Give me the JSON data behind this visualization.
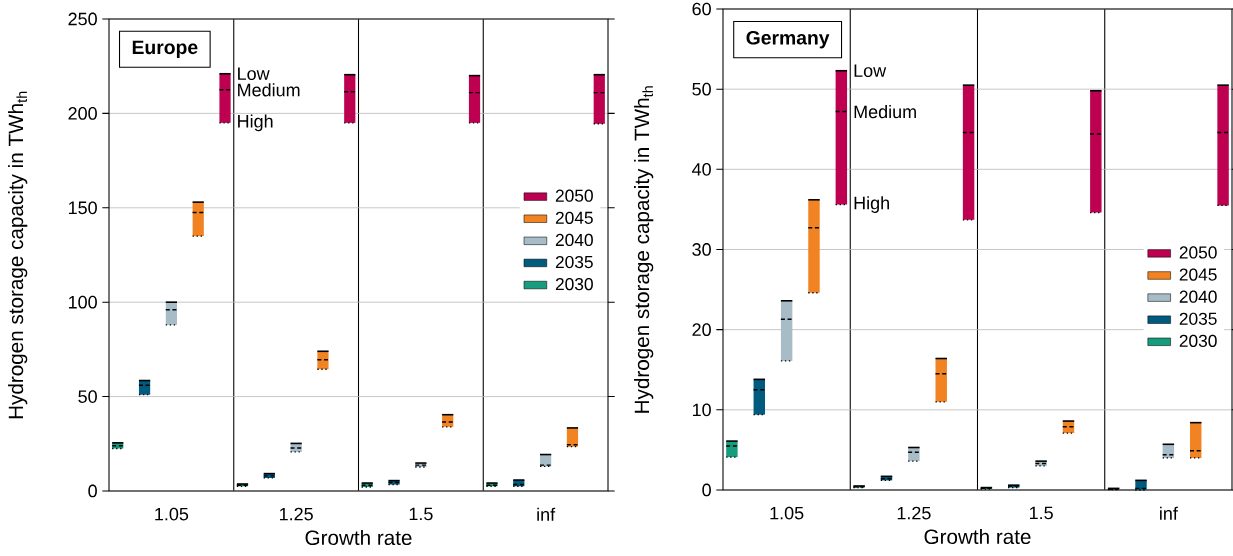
{
  "chart_data": [
    {
      "type": "box",
      "title": "Europe",
      "xlabel": "Growth rate",
      "ylabel": "Hydrogen storage capacity in TWh$_{th}$",
      "categories": [
        "1.05",
        "1.25",
        "1.5",
        "inf"
      ],
      "ylim": [
        0,
        250
      ],
      "yticks": [
        0,
        50,
        100,
        150,
        200,
        250
      ],
      "grid": "y",
      "legend": "right",
      "series": [
        {
          "name": "2030",
          "color": "#179c7d",
          "boxes": [
            {
              "low": 22.5,
              "q1": 22.5,
              "median": 24,
              "q3": 25.5,
              "high": 25.5
            },
            {
              "low": 2.5,
              "q1": 2.5,
              "median": 3,
              "q3": 3.7,
              "high": 3.7
            },
            {
              "low": 2.1,
              "q1": 2.1,
              "median": 3,
              "q3": 4.2,
              "high": 4.2
            },
            {
              "low": 2.5,
              "q1": 2.5,
              "median": 3,
              "q3": 4.2,
              "high": 4.2
            }
          ]
        },
        {
          "name": "2035",
          "color": "#005b7f",
          "boxes": [
            {
              "low": 51,
              "q1": 51,
              "median": 56,
              "q3": 58.5,
              "high": 58.5
            },
            {
              "low": 6.9,
              "q1": 6.9,
              "median": 8,
              "q3": 9.2,
              "high": 9.2
            },
            {
              "low": 3.4,
              "q1": 3.4,
              "median": 4.5,
              "q3": 5.5,
              "high": 5.5
            },
            {
              "low": 2.5,
              "q1": 2.5,
              "median": 3.4,
              "q3": 5.8,
              "high": 5.8
            }
          ]
        },
        {
          "name": "2040",
          "color": "#a8bcc8",
          "boxes": [
            {
              "low": 88,
              "q1": 88,
              "median": 96,
              "q3": 100,
              "high": 100
            },
            {
              "low": 20.7,
              "q1": 20.7,
              "median": 22.8,
              "q3": 25.2,
              "high": 25.2
            },
            {
              "low": 12.7,
              "q1": 12.7,
              "median": 13.7,
              "q3": 14.8,
              "high": 14.8
            },
            {
              "low": 13,
              "q1": 13,
              "median": 13.7,
              "q3": 19.3,
              "high": 19.3
            }
          ]
        },
        {
          "name": "2045",
          "color": "#f28322",
          "boxes": [
            {
              "low": 135,
              "q1": 135,
              "median": 147.5,
              "q3": 153,
              "high": 153
            },
            {
              "low": 64.5,
              "q1": 64.5,
              "median": 69.5,
              "q3": 74,
              "high": 74
            },
            {
              "low": 34,
              "q1": 34,
              "median": 36.5,
              "q3": 40.4,
              "high": 40.4
            },
            {
              "low": 23.5,
              "q1": 23.5,
              "median": 24.5,
              "q3": 33.4,
              "high": 33.4
            }
          ]
        },
        {
          "name": "2050",
          "color": "#be0050",
          "boxes": [
            {
              "low": 195,
              "q1": 195,
              "median": 212.5,
              "q3": 221,
              "high": 221
            },
            {
              "low": 195,
              "q1": 195,
              "median": 211.5,
              "q3": 220.5,
              "high": 220.5
            },
            {
              "low": 195,
              "q1": 195,
              "median": 211,
              "q3": 220,
              "high": 220
            },
            {
              "low": 194.5,
              "q1": 194.5,
              "median": 211,
              "q3": 220.5,
              "high": 220.5
            }
          ]
        }
      ],
      "annotations": [
        "Low",
        "Medium",
        "High"
      ]
    },
    {
      "type": "box",
      "title": "Germany",
      "xlabel": "Growth rate",
      "ylabel": "Hydrogen storage capacity in TWh$_{th}$",
      "categories": [
        "1.05",
        "1.25",
        "1.5",
        "inf"
      ],
      "ylim": [
        0,
        60
      ],
      "yticks": [
        0,
        10,
        20,
        30,
        40,
        50,
        60
      ],
      "grid": "y",
      "legend": "right",
      "series": [
        {
          "name": "2030",
          "color": "#179c7d",
          "boxes": [
            {
              "low": 4.1,
              "q1": 4.1,
              "median": 5.5,
              "q3": 6.1,
              "high": 6.1
            },
            {
              "low": 0.3,
              "q1": 0.3,
              "median": 0.4,
              "q3": 0.5,
              "high": 0.5
            },
            {
              "low": 0.1,
              "q1": 0.1,
              "median": 0.2,
              "q3": 0.3,
              "high": 0.3
            },
            {
              "low": 0.05,
              "q1": 0.05,
              "median": 0.1,
              "q3": 0.2,
              "high": 0.2
            }
          ]
        },
        {
          "name": "2035",
          "color": "#005b7f",
          "boxes": [
            {
              "low": 9.4,
              "q1": 9.4,
              "median": 12.5,
              "q3": 13.8,
              "high": 13.8
            },
            {
              "low": 1.2,
              "q1": 1.2,
              "median": 1.4,
              "q3": 1.7,
              "high": 1.7
            },
            {
              "low": 0.3,
              "q1": 0.3,
              "median": 0.5,
              "q3": 0.6,
              "high": 0.6
            },
            {
              "low": 0,
              "q1": 0,
              "median": 0.2,
              "q3": 1.2,
              "high": 1.2
            }
          ]
        },
        {
          "name": "2040",
          "color": "#a8bcc8",
          "boxes": [
            {
              "low": 16.1,
              "q1": 16.1,
              "median": 21.3,
              "q3": 23.6,
              "high": 23.6
            },
            {
              "low": 3.6,
              "q1": 3.6,
              "median": 4.7,
              "q3": 5.3,
              "high": 5.3
            },
            {
              "low": 3,
              "q1": 3,
              "median": 3.3,
              "q3": 3.6,
              "high": 3.6
            },
            {
              "low": 4,
              "q1": 4,
              "median": 4.4,
              "q3": 5.7,
              "high": 5.7
            }
          ]
        },
        {
          "name": "2045",
          "color": "#f28322",
          "boxes": [
            {
              "low": 24.6,
              "q1": 24.6,
              "median": 32.7,
              "q3": 36.2,
              "high": 36.2
            },
            {
              "low": 11,
              "q1": 11,
              "median": 14.5,
              "q3": 16.4,
              "high": 16.4
            },
            {
              "low": 7.1,
              "q1": 7.1,
              "median": 7.9,
              "q3": 8.6,
              "high": 8.6
            },
            {
              "low": 4,
              "q1": 4,
              "median": 4.9,
              "q3": 8.4,
              "high": 8.4
            }
          ]
        },
        {
          "name": "2050",
          "color": "#be0050",
          "boxes": [
            {
              "low": 35.6,
              "q1": 35.6,
              "median": 47.2,
              "q3": 52.3,
              "high": 52.3
            },
            {
              "low": 33.7,
              "q1": 33.7,
              "median": 44.6,
              "q3": 50.5,
              "high": 50.5
            },
            {
              "low": 34.6,
              "q1": 34.6,
              "median": 44.4,
              "q3": 49.8,
              "high": 49.8
            },
            {
              "low": 35.5,
              "q1": 35.5,
              "median": 44.6,
              "q3": 50.5,
              "high": 50.5
            }
          ]
        }
      ],
      "annotations": [
        "Low",
        "Medium",
        "High"
      ]
    }
  ]
}
